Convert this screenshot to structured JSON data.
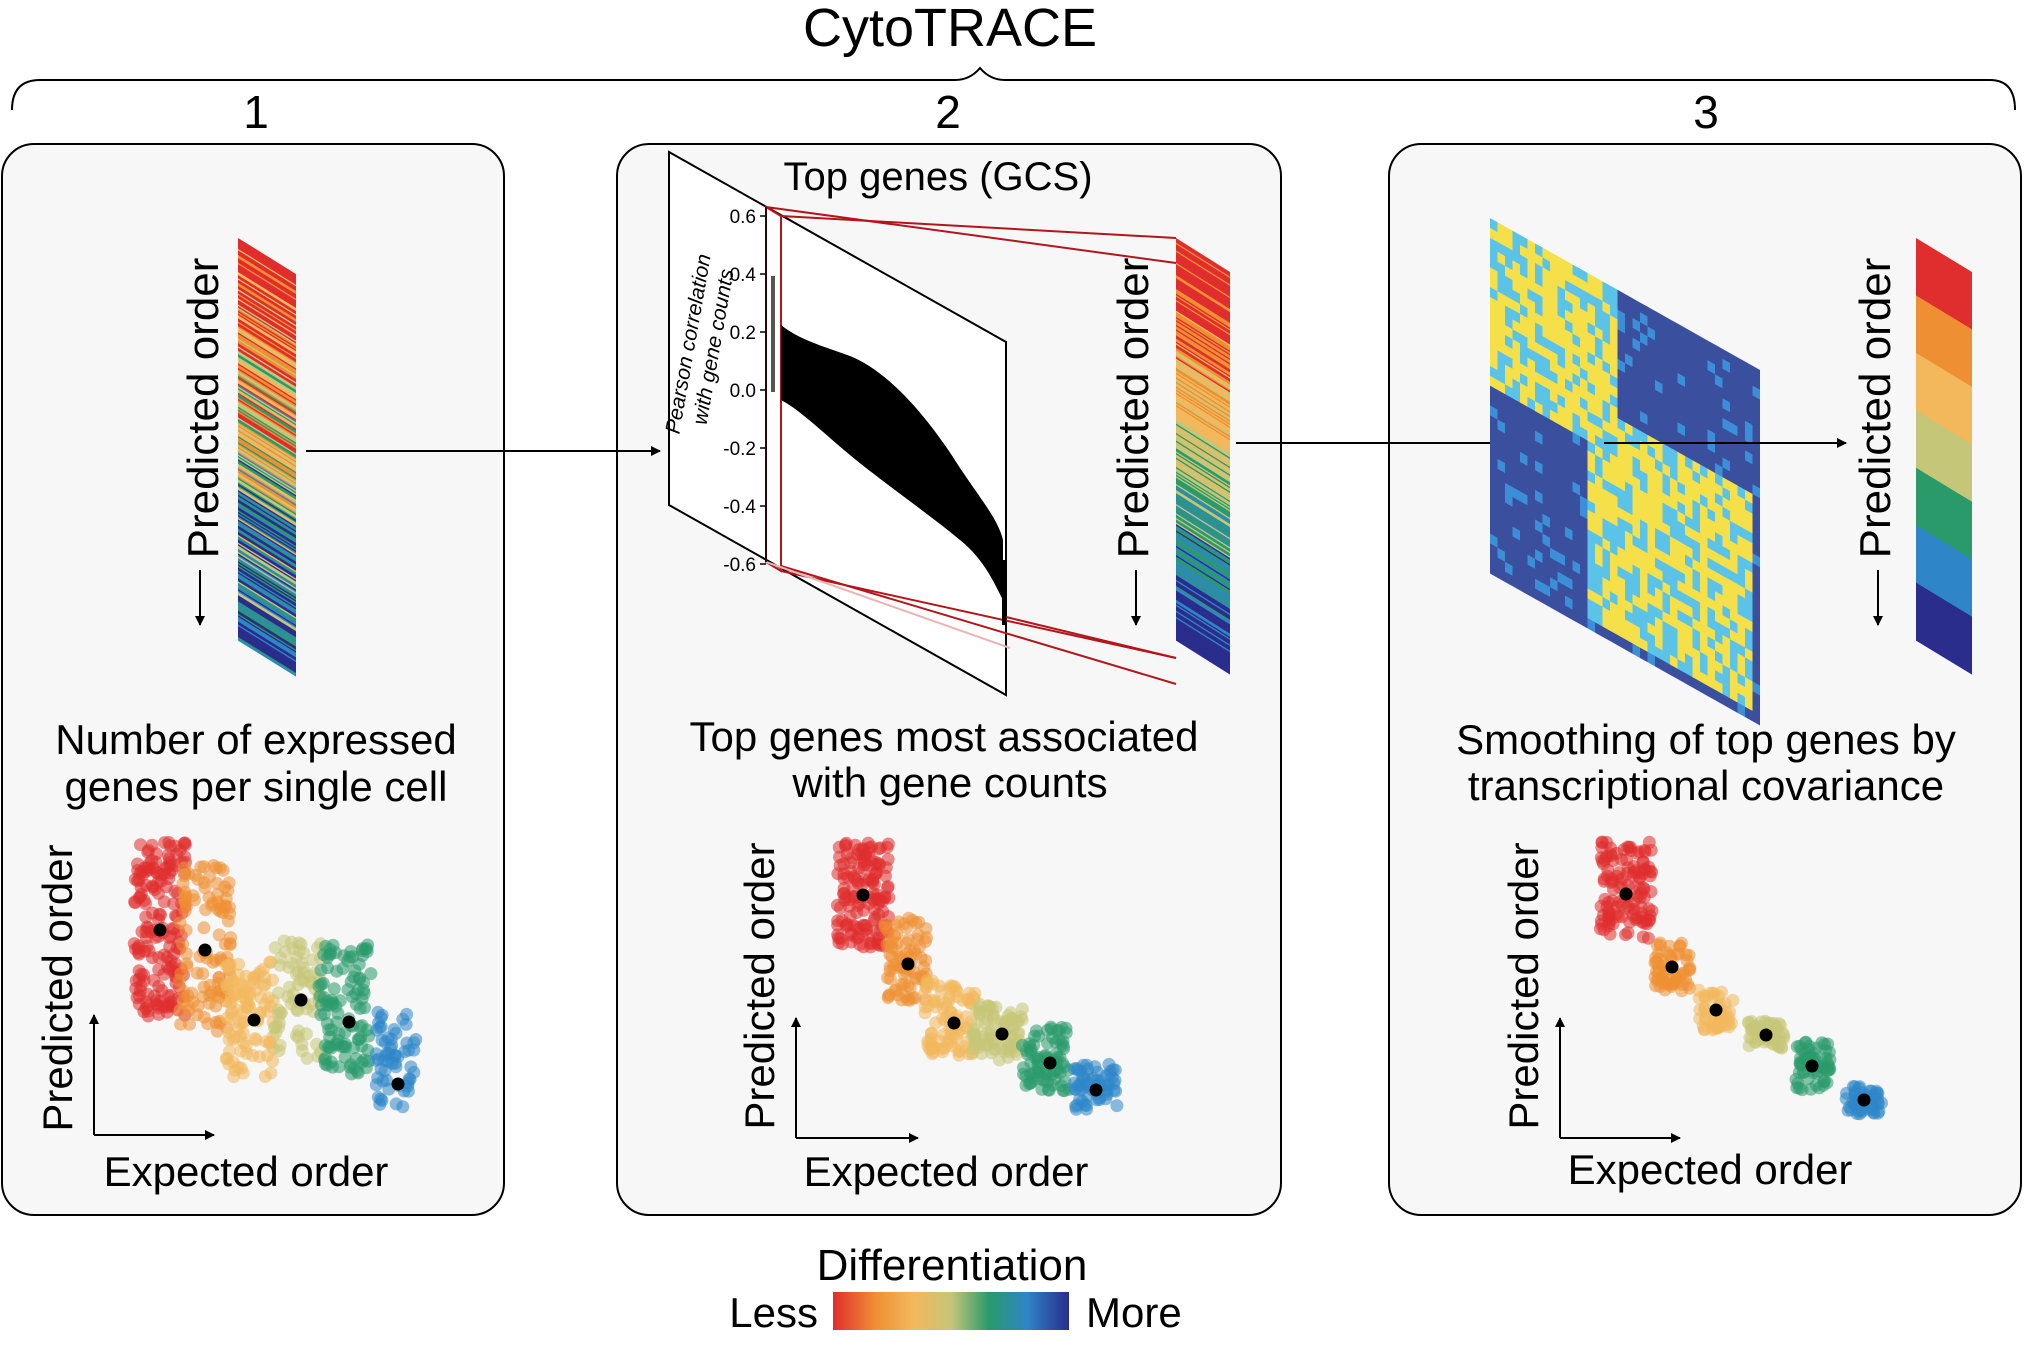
{
  "title": "CytoTRACE",
  "steps": [
    {
      "number": "1",
      "bar_label": "Predicted order",
      "caption_lines": [
        "Number of expressed",
        "genes per single cell"
      ],
      "y_axis": "Predicted order",
      "x_axis": "Expected order"
    },
    {
      "number": "2",
      "plot_title": "Top genes (GCS)",
      "plot_ylabel_lines": [
        "Pearson correlation",
        "with gene counts"
      ],
      "yticks": [
        "0.6",
        "0.4",
        "0.2",
        "0.0",
        "-0.2",
        "-0.4",
        "-0.6"
      ],
      "bar_label": "Predicted order",
      "caption_lines": [
        "Top genes most associated",
        "with gene counts"
      ],
      "y_axis": "Predicted order",
      "x_axis": "Expected order"
    },
    {
      "number": "3",
      "bar_label": "Predicted order",
      "caption_lines": [
        "Smoothing of top genes by",
        "transcriptional covariance"
      ],
      "y_axis": "Predicted order",
      "x_axis": "Expected order"
    }
  ],
  "legend": {
    "title": "Differentiation",
    "low": "Less",
    "high": "More"
  },
  "colors": {
    "palette": [
      "#e02d2d",
      "#ef8f33",
      "#f3b85c",
      "#c6c678",
      "#2a9a6b",
      "#2e86c8",
      "#2b2d8c"
    ],
    "panel_bg": "#f7f7f7",
    "heat_low": "#3a4f9e",
    "heat_high": "#f5e04a",
    "accent_red": "#b2161b"
  }
}
